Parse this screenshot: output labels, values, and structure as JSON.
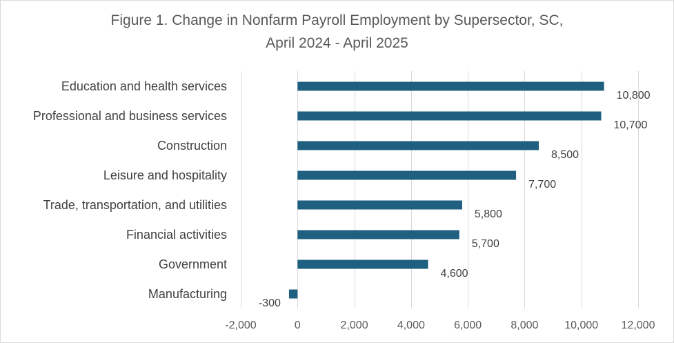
{
  "chart_data": {
    "type": "bar",
    "orientation": "horizontal",
    "title_lines": [
      "Figure 1. Change in Nonfarm Payroll Employment by Supersector, SC,",
      "April 2024 - April 2025"
    ],
    "categories": [
      "Education and health services",
      "Professional and business services",
      "Construction",
      "Leisure and hospitality",
      "Trade, transportation, and utilities",
      "Financial activities",
      "Government",
      "Manufacturing"
    ],
    "values": [
      10800,
      10700,
      8500,
      7700,
      5800,
      5700,
      4600,
      -300
    ],
    "data_labels": [
      "10,800",
      "10,700",
      "8,500",
      "7,700",
      "5,800",
      "5,700",
      "4,600",
      "-300"
    ],
    "xlim": [
      -2000,
      12000
    ],
    "xticks": [
      -2000,
      0,
      2000,
      4000,
      6000,
      8000,
      10000,
      12000
    ],
    "xtick_labels": [
      "-2,000",
      "0",
      "2,000",
      "4,000",
      "6,000",
      "8,000",
      "10,000",
      "12,000"
    ],
    "grid": true,
    "legend": "none",
    "colors": {
      "bar": "#1f5f7f",
      "grid": "#d9d9d9"
    }
  }
}
